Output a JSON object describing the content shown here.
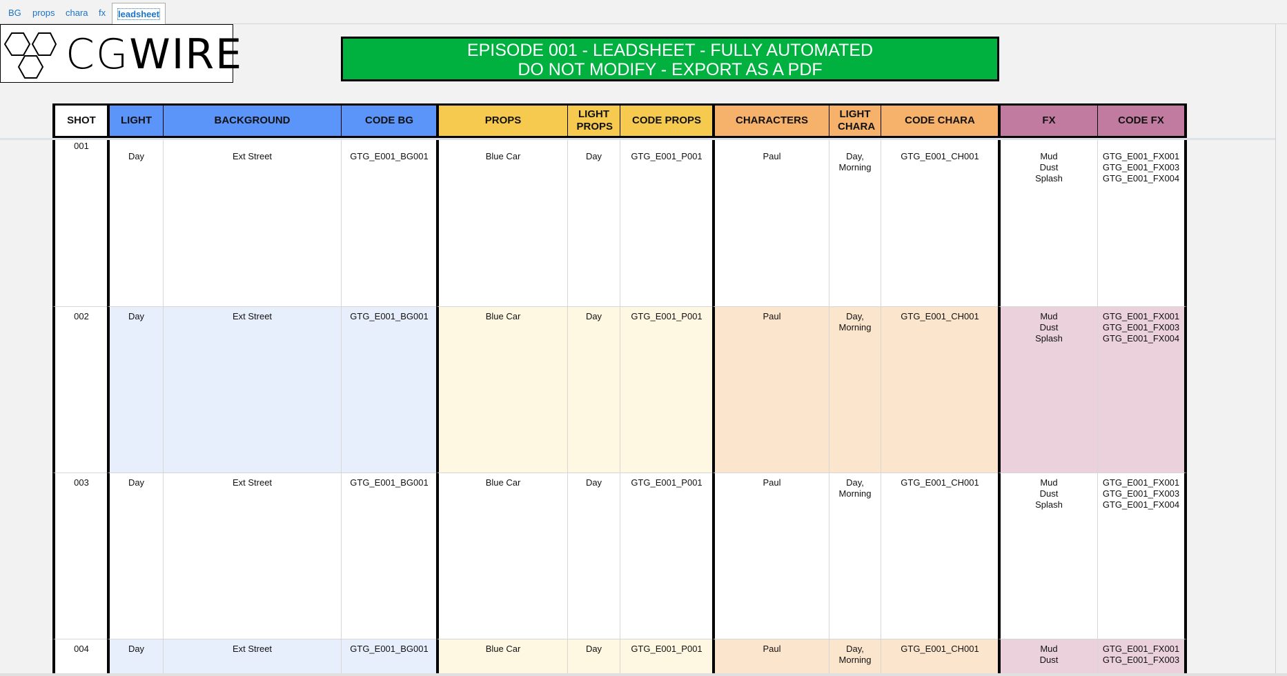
{
  "tabs": [
    {
      "label": "BG",
      "active": false
    },
    {
      "label": "props",
      "active": false
    },
    {
      "label": "chara",
      "active": false
    },
    {
      "label": "fx",
      "active": false
    },
    {
      "label": "leadsheet",
      "active": true
    }
  ],
  "logo": {
    "text_light": "CG",
    "text_bold": "WIRE"
  },
  "banner": {
    "line1": "EPISODE 001 - LEADSHEET - FULLY AUTOMATED",
    "line2": "DO NOT MODIFY - EXPORT AS A PDF",
    "color": "#00b140"
  },
  "colors": {
    "shot": "#ffffff",
    "bg": "#5b95f9",
    "bg_tint": "#e8effc",
    "props": "#f6ca4f",
    "props_tint": "#fef7e1",
    "chara": "#f6b26b",
    "chara_tint": "#fce5cd",
    "fx": "#c27ba0",
    "fx_tint": "#ead1dc"
  },
  "columns": [
    {
      "key": "shot",
      "label": "SHOT",
      "group": "shot"
    },
    {
      "key": "light",
      "label": "LIGHT",
      "group": "bg"
    },
    {
      "key": "background",
      "label": "BACKGROUND",
      "group": "bg"
    },
    {
      "key": "code_bg",
      "label": "CODE BG",
      "group": "bg"
    },
    {
      "key": "props",
      "label": "PROPS",
      "group": "props"
    },
    {
      "key": "light_props",
      "label": "LIGHT PROPS",
      "group": "props"
    },
    {
      "key": "code_props",
      "label": "CODE PROPS",
      "group": "props"
    },
    {
      "key": "characters",
      "label": "CHARACTERS",
      "group": "chara"
    },
    {
      "key": "light_chara",
      "label": "LIGHT CHARA",
      "group": "chara"
    },
    {
      "key": "code_chara",
      "label": "CODE CHARA",
      "group": "chara"
    },
    {
      "key": "fx",
      "label": "FX",
      "group": "fx"
    },
    {
      "key": "code_fx",
      "label": "CODE FX",
      "group": "fx"
    }
  ],
  "rows": [
    {
      "shot": [
        "001"
      ],
      "light": [
        "Day"
      ],
      "background": [
        "Ext Street"
      ],
      "code_bg": [
        "GTG_E001_BG001"
      ],
      "props": [
        "Blue Car"
      ],
      "light_props": [
        "Day"
      ],
      "code_props": [
        "GTG_E001_P001"
      ],
      "characters": [
        "Paul"
      ],
      "light_chara": [
        "Day,",
        "Morning"
      ],
      "code_chara": [
        "GTG_E001_CH001"
      ],
      "fx": [
        "Mud",
        "Dust",
        "Splash"
      ],
      "code_fx": [
        "GTG_E001_FX001",
        "GTG_E001_FX003",
        "GTG_E001_FX004"
      ]
    },
    {
      "shot": [
        "002"
      ],
      "light": [
        "Day"
      ],
      "background": [
        "Ext Street"
      ],
      "code_bg": [
        "GTG_E001_BG001"
      ],
      "props": [
        "Blue Car"
      ],
      "light_props": [
        "Day"
      ],
      "code_props": [
        "GTG_E001_P001"
      ],
      "characters": [
        "Paul"
      ],
      "light_chara": [
        "Day,",
        "Morning"
      ],
      "code_chara": [
        "GTG_E001_CH001"
      ],
      "fx": [
        "Mud",
        "Dust",
        "Splash"
      ],
      "code_fx": [
        "GTG_E001_FX001",
        "GTG_E001_FX003",
        "GTG_E001_FX004"
      ]
    },
    {
      "shot": [
        "003"
      ],
      "light": [
        "Day"
      ],
      "background": [
        "Ext Street"
      ],
      "code_bg": [
        "GTG_E001_BG001"
      ],
      "props": [
        "Blue Car"
      ],
      "light_props": [
        "Day"
      ],
      "code_props": [
        "GTG_E001_P001"
      ],
      "characters": [
        "Paul"
      ],
      "light_chara": [
        "Day,",
        "Morning"
      ],
      "code_chara": [
        "GTG_E001_CH001"
      ],
      "fx": [
        "Mud",
        "Dust",
        "Splash"
      ],
      "code_fx": [
        "GTG_E001_FX001",
        "GTG_E001_FX003",
        "GTG_E001_FX004"
      ]
    },
    {
      "shot": [
        "004"
      ],
      "light": [
        "Day"
      ],
      "background": [
        "Ext Street"
      ],
      "code_bg": [
        "GTG_E001_BG001"
      ],
      "props": [
        "Blue Car"
      ],
      "light_props": [
        "Day"
      ],
      "code_props": [
        "GTG_E001_P001"
      ],
      "characters": [
        "Paul"
      ],
      "light_chara": [
        "Day,",
        "Morning"
      ],
      "code_chara": [
        "GTG_E001_CH001"
      ],
      "fx": [
        "Mud",
        "Dust"
      ],
      "code_fx": [
        "GTG_E001_FX001",
        "GTG_E001_FX003"
      ]
    }
  ]
}
